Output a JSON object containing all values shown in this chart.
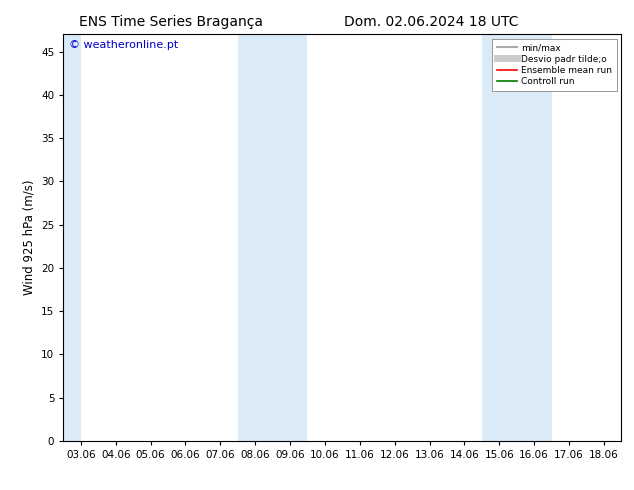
{
  "title_left": "ENS Time Series Bragança",
  "title_right": "Dom. 02.06.2024 18 UTC",
  "ylabel": "Wind 925 hPa (m/s)",
  "watermark": "© weatheronline.pt",
  "ylim": [
    0,
    47
  ],
  "yticks": [
    0,
    5,
    10,
    15,
    20,
    25,
    30,
    35,
    40,
    45
  ],
  "xtick_labels": [
    "03.06",
    "04.06",
    "05.06",
    "06.06",
    "07.06",
    "08.06",
    "09.06",
    "10.06",
    "11.06",
    "12.06",
    "13.06",
    "14.06",
    "15.06",
    "16.06",
    "17.06",
    "18.06"
  ],
  "shaded_bands": [
    {
      "xstart": 0,
      "xend": 0
    },
    {
      "xstart": 5,
      "xend": 7
    },
    {
      "xstart": 12,
      "xend": 14
    }
  ],
  "shaded_color": "#daeaf7",
  "background_color": "#ffffff",
  "legend_entries": [
    {
      "label": "min/max",
      "color": "#aaaaaa",
      "lw": 1.5
    },
    {
      "label": "Desvio padr tilde;o",
      "color": "#cccccc",
      "lw": 5
    },
    {
      "label": "Ensemble mean run",
      "color": "#ff0000",
      "lw": 1.2
    },
    {
      "label": "Controll run",
      "color": "#007700",
      "lw": 1.2
    }
  ],
  "title_fontsize": 10,
  "tick_fontsize": 7.5,
  "ylabel_fontsize": 8.5,
  "watermark_color": "#0000cc",
  "watermark_fontsize": 8
}
